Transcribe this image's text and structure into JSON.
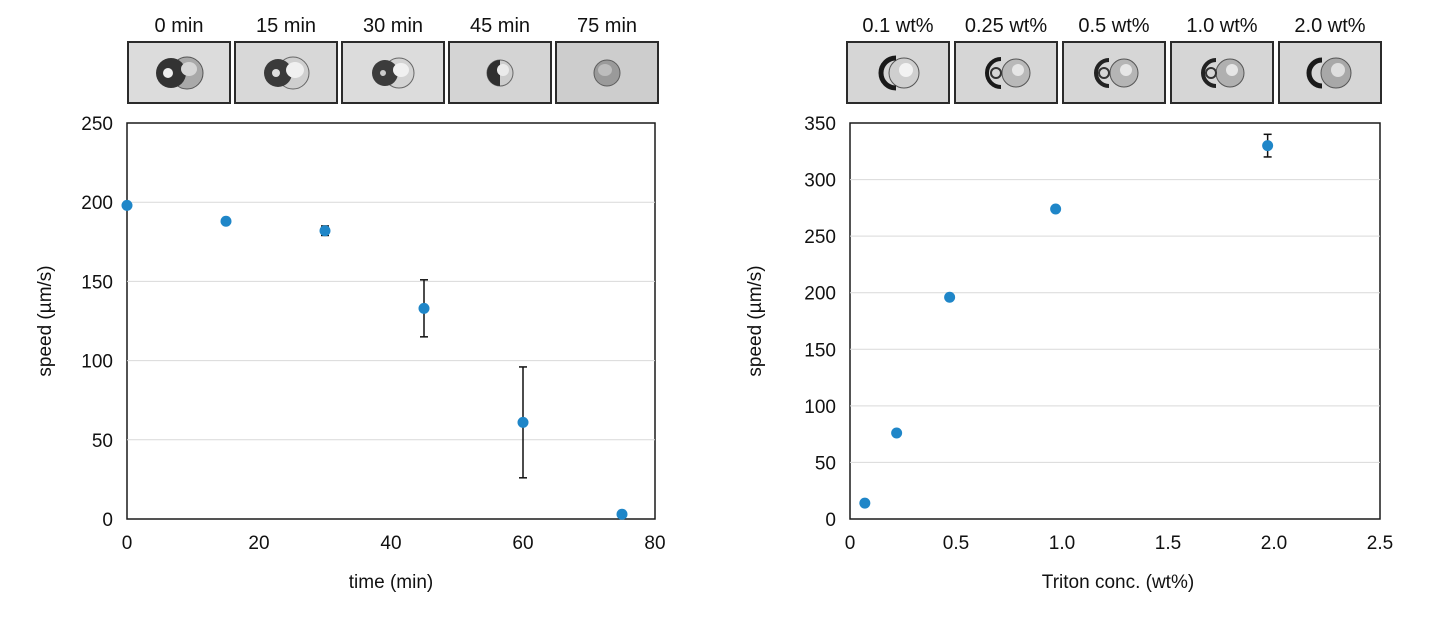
{
  "figure": {
    "left_strip": {
      "labels": [
        "0 min",
        "15 min",
        "30 min",
        "45 min",
        "75 min"
      ],
      "thumb_colors": [
        "#dcdcdc",
        "#d8d8d8",
        "#dcdcdc",
        "#d4d4d4",
        "#cdcdcd"
      ]
    },
    "right_strip": {
      "labels": [
        "0.1 wt%",
        "0.25 wt%",
        "0.5 wt%",
        "1.0 wt%",
        "2.0 wt%"
      ],
      "thumb_colors": [
        "#d6d6d6",
        "#d6d6d6",
        "#d6d6d6",
        "#d6d6d6",
        "#d6d6d6"
      ]
    }
  },
  "chart_data": [
    {
      "type": "scatter",
      "title": "",
      "xlabel": "time (min)",
      "ylabel": "speed (µm/s)",
      "xlim": [
        0,
        80
      ],
      "ylim": [
        0,
        250
      ],
      "xticks": [
        0,
        20,
        40,
        60,
        80
      ],
      "yticks": [
        0,
        50,
        100,
        150,
        200,
        250
      ],
      "grid": "horizontal",
      "marker_color": "#1f86c8",
      "series": [
        {
          "x": [
            0,
            15,
            30,
            45,
            60,
            75
          ],
          "y": [
            198,
            188,
            182,
            133,
            61,
            3
          ],
          "err": [
            0,
            0,
            3,
            18,
            35,
            0
          ]
        }
      ]
    },
    {
      "type": "scatter",
      "title": "",
      "xlabel": "Triton conc. (wt%)",
      "ylabel": "speed (µm/s)",
      "xlim": [
        0,
        2.5
      ],
      "ylim": [
        0,
        350
      ],
      "xticks": [
        0,
        0.5,
        1.0,
        1.5,
        2.0,
        2.5
      ],
      "xtick_labels": [
        "0",
        "0.5",
        "1.0",
        "1.5",
        "2.0",
        "2.5"
      ],
      "yticks": [
        0,
        50,
        100,
        150,
        200,
        250,
        300,
        350
      ],
      "grid": "horizontal",
      "marker_color": "#1f86c8",
      "series": [
        {
          "x": [
            0.07,
            0.22,
            0.47,
            0.97,
            1.97
          ],
          "y": [
            14,
            76,
            196,
            274,
            330
          ],
          "err": [
            0,
            0,
            0,
            0,
            10
          ]
        }
      ]
    }
  ]
}
